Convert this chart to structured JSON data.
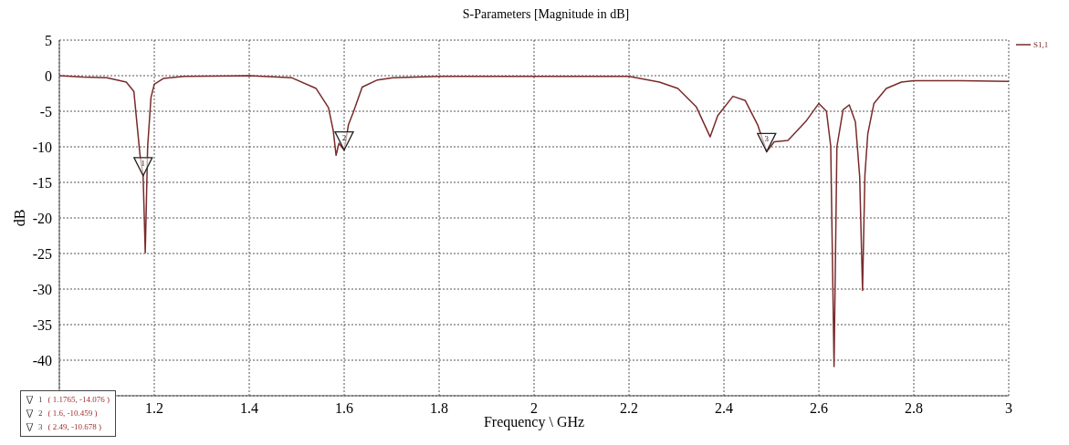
{
  "chart_data": {
    "type": "line",
    "title": "S-Parameters [Magnitude in dB]",
    "xlabel": "Frequency \\ GHz",
    "ylabel": "dB",
    "x": [
      1.0,
      1.05,
      1.1,
      1.141,
      1.157,
      1.17,
      1.1765,
      1.181,
      1.186,
      1.193,
      1.2,
      1.219,
      1.263,
      1.4,
      1.49,
      1.541,
      1.567,
      1.577,
      1.583,
      1.589,
      1.6,
      1.609,
      1.619,
      1.638,
      1.67,
      1.703,
      1.8,
      2.0,
      2.2,
      2.264,
      2.303,
      2.342,
      2.371,
      2.387,
      2.419,
      2.445,
      2.471,
      2.49,
      2.506,
      2.535,
      2.574,
      2.6,
      2.616,
      2.625,
      2.632,
      2.638,
      2.651,
      2.664,
      2.677,
      2.686,
      2.692,
      2.697,
      2.703,
      2.716,
      2.742,
      2.774,
      2.8,
      2.9,
      3.0
    ],
    "series": [
      {
        "name": "S1,1",
        "color": "#7a2a2a",
        "values": [
          0,
          -0.2,
          -0.3,
          -0.9,
          -2.2,
          -11.2,
          -14.076,
          -24.9,
          -10,
          -3.1,
          -1.2,
          -0.4,
          -0.1,
          0,
          -0.3,
          -1.8,
          -4.5,
          -7.7,
          -11.2,
          -9.5,
          -10.459,
          -6.9,
          -5.2,
          -1.6,
          -0.6,
          -0.3,
          -0.1,
          -0.1,
          -0.1,
          -0.9,
          -1.8,
          -4.4,
          -8.6,
          -5.6,
          -2.9,
          -3.5,
          -6.9,
          -10.678,
          -9.3,
          -9.1,
          -6.3,
          -3.9,
          -5,
          -9.9,
          -40.9,
          -10,
          -4.8,
          -4.1,
          -6.5,
          -14.2,
          -30.2,
          -14,
          -8.2,
          -3.9,
          -1.8,
          -0.9,
          -0.7,
          -0.7,
          -0.8
        ]
      }
    ],
    "xlim": [
      1,
      3
    ],
    "xticks": [
      1.2,
      1.4,
      1.6,
      1.8,
      2,
      2.2,
      2.4,
      2.6,
      2.8,
      3
    ],
    "ylim": [
      -45,
      5
    ],
    "yticks": [
      5,
      0,
      -5,
      -10,
      -15,
      -20,
      -25,
      -30,
      -35,
      -40
    ],
    "grid": true,
    "legend": "top right",
    "annotations": [
      {
        "text": "1",
        "x": 1.1765,
        "y": -14.076
      },
      {
        "text": "2",
        "x": 1.6,
        "y": -10.459
      },
      {
        "text": "3",
        "x": 2.49,
        "y": -10.678
      },
      "( 1.1765, -14.076 )",
      "( 1.6, -10.459 )",
      "( 2.49, -10.678 )"
    ]
  }
}
